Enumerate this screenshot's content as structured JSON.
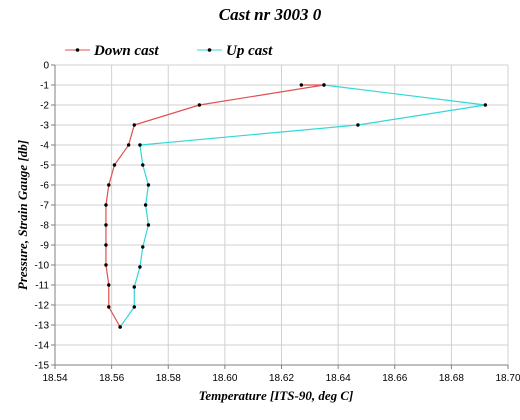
{
  "chart_data": {
    "type": "line",
    "title": "Cast nr 3003 0",
    "xlabel": "Temperature [ITS-90, deg C]",
    "ylabel": "Pressure, Strain Gauge [db]",
    "xlim": [
      18.54,
      18.7
    ],
    "ylim": [
      -15,
      0
    ],
    "x_ticks": [
      18.54,
      18.56,
      18.58,
      18.6,
      18.62,
      18.64,
      18.66,
      18.68,
      18.7
    ],
    "x_tick_labels": [
      "18.54",
      "18.56",
      "18.58",
      "18.60",
      "18.62",
      "18.64",
      "18.66",
      "18.68",
      "18.70"
    ],
    "y_ticks": [
      0,
      -1,
      -2,
      -3,
      -4,
      -5,
      -6,
      -7,
      -8,
      -9,
      -10,
      -11,
      -12,
      -13,
      -14,
      -15
    ],
    "y_tick_labels": [
      "0",
      "-1",
      "-2",
      "-3",
      "-4",
      "-5",
      "-6",
      "-7",
      "-8",
      "-9",
      "-10",
      "-11",
      "-12",
      "-13",
      "-14",
      "-15"
    ],
    "grid": true,
    "legend_position": "top",
    "series": [
      {
        "name": "Down cast",
        "color": "#e05050",
        "points": [
          {
            "x": 18.627,
            "y": -1.0
          },
          {
            "x": 18.635,
            "y": -1.0
          },
          {
            "x": 18.591,
            "y": -2.0
          },
          {
            "x": 18.568,
            "y": -3.0
          },
          {
            "x": 18.566,
            "y": -4.0
          },
          {
            "x": 18.561,
            "y": -5.0
          },
          {
            "x": 18.559,
            "y": -6.0
          },
          {
            "x": 18.558,
            "y": -7.0
          },
          {
            "x": 18.558,
            "y": -8.0
          },
          {
            "x": 18.558,
            "y": -9.0
          },
          {
            "x": 18.558,
            "y": -10.0
          },
          {
            "x": 18.559,
            "y": -11.0
          },
          {
            "x": 18.559,
            "y": -12.1
          },
          {
            "x": 18.563,
            "y": -13.1
          }
        ]
      },
      {
        "name": "Up cast",
        "color": "#30d8d8",
        "points": [
          {
            "x": 18.563,
            "y": -13.1
          },
          {
            "x": 18.568,
            "y": -12.1
          },
          {
            "x": 18.568,
            "y": -11.1
          },
          {
            "x": 18.57,
            "y": -10.1
          },
          {
            "x": 18.571,
            "y": -9.1
          },
          {
            "x": 18.573,
            "y": -8.0
          },
          {
            "x": 18.572,
            "y": -7.0
          },
          {
            "x": 18.573,
            "y": -6.0
          },
          {
            "x": 18.571,
            "y": -5.0
          },
          {
            "x": 18.57,
            "y": -4.0
          },
          {
            "x": 18.647,
            "y": -3.0
          },
          {
            "x": 18.692,
            "y": -2.0
          },
          {
            "x": 18.635,
            "y": -1.0
          }
        ]
      }
    ]
  }
}
